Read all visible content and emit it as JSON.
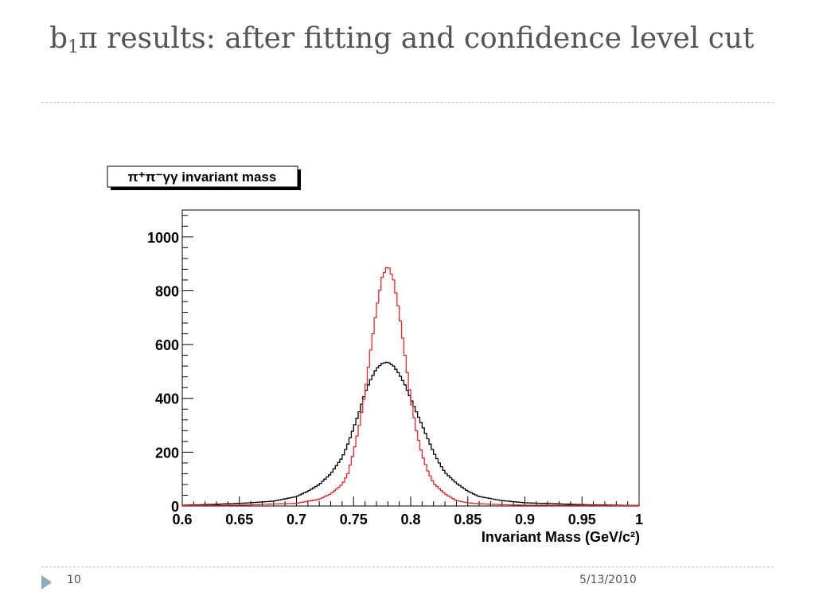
{
  "slide": {
    "title_prefix": "b",
    "title_subscript": "1",
    "title_rest": "π results: after fitting and confidence level cut",
    "page_number": "10",
    "date": "5/13/2010"
  },
  "colors": {
    "title_text": "#555555",
    "divider": "#b7c4cc",
    "bullet": "#8fa9bd",
    "black_hist": "#000000",
    "red_hist": "#e8262b"
  },
  "chart_data": {
    "type": "line",
    "histogram_title": "π⁺π⁻γγ invariant mass",
    "xlabel": "Invariant Mass (GeV/c²)",
    "ylabel": "",
    "xlim": [
      0.6,
      1.0
    ],
    "ylim": [
      0,
      1100
    ],
    "x_ticks": [
      0.6,
      0.65,
      0.7,
      0.75,
      0.8,
      0.85,
      0.9,
      0.95,
      1
    ],
    "x_tick_labels": [
      "0.6",
      "0.65",
      "0.7",
      "0.75",
      "0.8",
      "0.85",
      "0.9",
      "0.95",
      "1"
    ],
    "y_ticks": [
      0,
      200,
      400,
      600,
      800,
      1000
    ],
    "y_tick_labels": [
      "0",
      "200",
      "400",
      "600",
      "800",
      "1000"
    ],
    "grid": false,
    "legend": "none",
    "series": [
      {
        "color": "#000000",
        "x": [
          0.6,
          0.62,
          0.64,
          0.66,
          0.68,
          0.7,
          0.71,
          0.72,
          0.73,
          0.74,
          0.745,
          0.75,
          0.755,
          0.76,
          0.765,
          0.77,
          0.775,
          0.78,
          0.785,
          0.79,
          0.795,
          0.8,
          0.805,
          0.81,
          0.815,
          0.82,
          0.825,
          0.83,
          0.84,
          0.85,
          0.86,
          0.88,
          0.9,
          0.95,
          1.0
        ],
        "values": [
          3,
          5,
          8,
          12,
          18,
          35,
          55,
          80,
          120,
          180,
          230,
          290,
          350,
          420,
          470,
          510,
          530,
          535,
          520,
          490,
          450,
          400,
          350,
          300,
          250,
          200,
          160,
          125,
          85,
          55,
          35,
          20,
          12,
          5,
          2
        ]
      },
      {
        "color": "#e8262b",
        "x": [
          0.6,
          0.65,
          0.7,
          0.72,
          0.73,
          0.74,
          0.745,
          0.75,
          0.755,
          0.76,
          0.765,
          0.77,
          0.775,
          0.78,
          0.785,
          0.79,
          0.795,
          0.8,
          0.805,
          0.81,
          0.815,
          0.82,
          0.83,
          0.84,
          0.85,
          0.86,
          0.88,
          0.9,
          1.0
        ],
        "values": [
          2,
          3,
          10,
          25,
          45,
          80,
          120,
          200,
          300,
          420,
          580,
          730,
          850,
          895,
          840,
          720,
          560,
          400,
          280,
          190,
          130,
          85,
          45,
          20,
          12,
          8,
          5,
          3,
          2
        ]
      }
    ]
  }
}
